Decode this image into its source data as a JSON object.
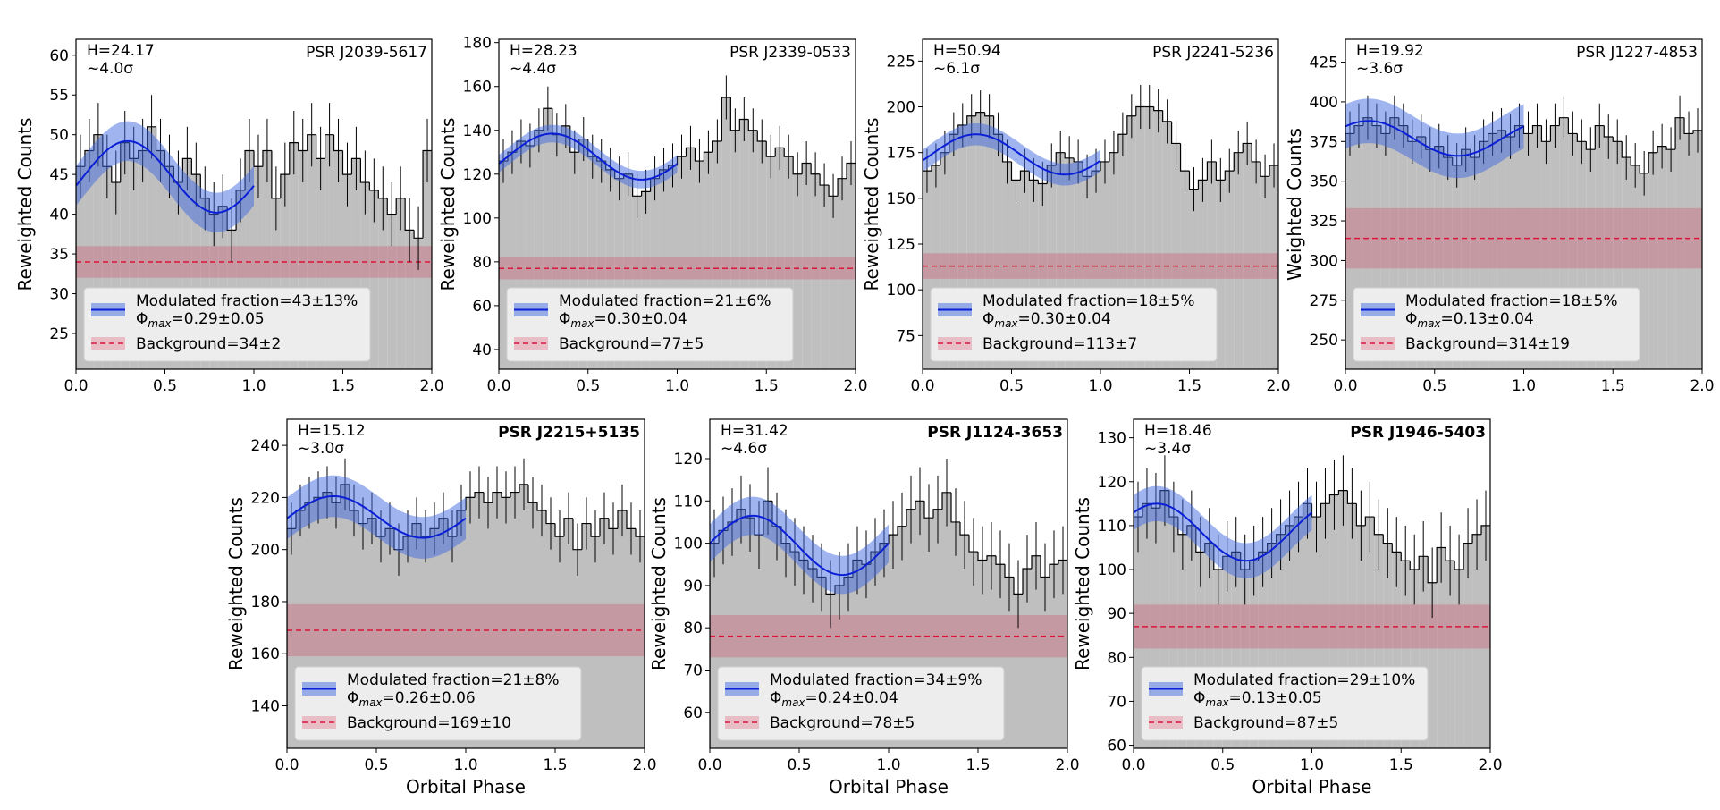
{
  "chart_data": [
    {
      "type": "histogram",
      "title": "PSR J2039-5617",
      "title_bold": false,
      "h_stat": "H=24.17",
      "significance": "~4.0σ",
      "ylabel": "Reweighted Counts",
      "bins": [
        0,
        0.05,
        0.1,
        0.15,
        0.2,
        0.25,
        0.3,
        0.35,
        0.4,
        0.45,
        0.5,
        0.55,
        0.6,
        0.65,
        0.7,
        0.75,
        0.8,
        0.85,
        0.9,
        0.95,
        1,
        1.05,
        1.1,
        1.15,
        1.2,
        1.25,
        1.3,
        1.35,
        1.4,
        1.45,
        1.5,
        1.55,
        1.6,
        1.65,
        1.7,
        1.75,
        1.8,
        1.85,
        1.9,
        1.95,
        2
      ],
      "values": [
        46,
        48,
        50,
        46,
        44,
        49,
        47,
        48,
        51,
        48,
        46,
        44,
        47,
        45,
        42,
        40,
        41,
        38,
        43,
        48,
        46,
        48,
        42,
        45,
        49,
        48,
        50,
        47,
        50,
        48,
        45,
        47,
        44,
        43,
        42,
        40,
        42,
        38,
        37,
        48
      ],
      "error": 4,
      "fit": {
        "mean": 44.7,
        "amplitude": 4.5,
        "phi_max": 0.29,
        "band": 2.5
      },
      "background": 34,
      "background_err": 2,
      "fraction_label": "Modulated fraction=43±13%",
      "phase_label": {
        "symbol": "Φ",
        "subscript": "max",
        "text": "=0.29±0.05"
      },
      "background_label": "Background=34±2",
      "xlim": [
        0,
        2
      ],
      "xticks": [
        {
          "value": 0,
          "label": "0.0"
        },
        0.5,
        {
          "value": 1,
          "label": "1.0"
        },
        1.5,
        {
          "value": 2,
          "label": "2.0"
        }
      ],
      "ylim": [
        20.5,
        62
      ],
      "yticks": [
        25,
        30,
        35,
        40,
        45,
        50,
        55,
        60
      ],
      "colors": {
        "hist": "#bfbfbf",
        "fit": "#0a1fd6",
        "band": "#4169e1",
        "bg": "#dc143c"
      }
    },
    {
      "type": "histogram",
      "title": "PSR J2339-0533",
      "title_bold": false,
      "h_stat": "H=28.23",
      "significance": "~4.4σ",
      "ylabel": "Reweighted Counts",
      "bins": [
        0,
        0.05,
        0.1,
        0.15,
        0.2,
        0.25,
        0.3,
        0.35,
        0.4,
        0.45,
        0.5,
        0.55,
        0.6,
        0.65,
        0.7,
        0.75,
        0.8,
        0.85,
        0.9,
        0.95,
        1,
        1.05,
        1.1,
        1.15,
        1.2,
        1.25,
        1.3,
        1.35,
        1.4,
        1.45,
        1.5,
        1.55,
        1.6,
        1.65,
        1.7,
        1.75,
        1.8,
        1.85,
        1.9,
        1.95,
        2
      ],
      "values": [
        126,
        130,
        135,
        133,
        140,
        150,
        138,
        142,
        130,
        136,
        128,
        126,
        122,
        118,
        120,
        110,
        112,
        118,
        122,
        124,
        128,
        132,
        126,
        130,
        135,
        155,
        140,
        145,
        140,
        135,
        128,
        132,
        128,
        120,
        125,
        120,
        115,
        110,
        118,
        125
      ],
      "error": 10,
      "fit": {
        "mean": 128,
        "amplitude": 10.5,
        "phi_max": 0.3,
        "band": 4
      },
      "background": 77,
      "background_err": 5,
      "fraction_label": "Modulated fraction=21±6%",
      "phase_label": {
        "symbol": "Φ",
        "subscript": "max",
        "text": "=0.30±0.04"
      },
      "background_label": "Background=77±5",
      "xlim": [
        0,
        2
      ],
      "xticks": [
        {
          "value": 0,
          "label": "0.0"
        },
        0.5,
        {
          "value": 1,
          "label": "1.0"
        },
        1.5,
        {
          "value": 2,
          "label": "2.0"
        }
      ],
      "ylim": [
        31,
        181.5
      ],
      "yticks": [
        40,
        60,
        80,
        100,
        120,
        140,
        160,
        180
      ],
      "colors": {
        "hist": "#bfbfbf",
        "fit": "#0a1fd6",
        "band": "#4169e1",
        "bg": "#dc143c"
      }
    },
    {
      "type": "histogram",
      "title": "PSR J2241-5236",
      "title_bold": false,
      "h_stat": "H=50.94",
      "significance": "~6.1σ",
      "ylabel": "Reweighted Counts",
      "bins": [
        0,
        0.05,
        0.1,
        0.15,
        0.2,
        0.25,
        0.3,
        0.35,
        0.4,
        0.45,
        0.5,
        0.55,
        0.6,
        0.65,
        0.7,
        0.75,
        0.8,
        0.85,
        0.9,
        0.95,
        1,
        1.05,
        1.1,
        1.15,
        1.2,
        1.25,
        1.3,
        1.35,
        1.4,
        1.45,
        1.5,
        1.55,
        1.6,
        1.65,
        1.7,
        1.75,
        1.8,
        1.85,
        1.9,
        1.95,
        2
      ],
      "values": [
        165,
        168,
        175,
        185,
        190,
        195,
        197,
        195,
        185,
        170,
        160,
        165,
        160,
        158,
        168,
        175,
        172,
        170,
        162,
        165,
        170,
        175,
        185,
        195,
        200,
        200,
        198,
        192,
        180,
        165,
        155,
        160,
        170,
        160,
        165,
        175,
        180,
        170,
        162,
        168
      ],
      "error": 12,
      "fit": {
        "mean": 174,
        "amplitude": 11,
        "phi_max": 0.3,
        "band": 6
      },
      "background": 113,
      "background_err": 7,
      "fraction_label": "Modulated fraction=18±5%",
      "phase_label": {
        "symbol": "Φ",
        "subscript": "max",
        "text": "=0.30±0.04"
      },
      "background_label": "Background=113±7",
      "xlim": [
        0,
        2
      ],
      "xticks": [
        {
          "value": 0,
          "label": "0.0"
        },
        0.5,
        {
          "value": 1,
          "label": "1.0"
        },
        1.5,
        {
          "value": 2,
          "label": "2.0"
        }
      ],
      "ylim": [
        56.6,
        236.9
      ],
      "yticks": [
        75,
        100,
        125,
        150,
        175,
        200,
        225
      ],
      "colors": {
        "hist": "#bfbfbf",
        "fit": "#0a1fd6",
        "band": "#4169e1",
        "bg": "#dc143c"
      }
    },
    {
      "type": "histogram",
      "title": "PSR J1227-4853",
      "title_bold": false,
      "h_stat": "H=19.92",
      "significance": "~3.6σ",
      "ylabel": "Weighted Counts",
      "bins": [
        0,
        0.05,
        0.1,
        0.15,
        0.2,
        0.25,
        0.3,
        0.35,
        0.4,
        0.45,
        0.5,
        0.55,
        0.6,
        0.65,
        0.7,
        0.75,
        0.8,
        0.85,
        0.9,
        0.95,
        1,
        1.05,
        1.1,
        1.15,
        1.2,
        1.25,
        1.3,
        1.35,
        1.4,
        1.45,
        1.5,
        1.55,
        1.6,
        1.65,
        1.7,
        1.75,
        1.8,
        1.85,
        1.9,
        1.95,
        2
      ],
      "values": [
        380,
        385,
        390,
        385,
        380,
        390,
        385,
        375,
        378,
        370,
        372,
        365,
        360,
        370,
        365,
        375,
        380,
        382,
        378,
        385,
        380,
        385,
        375,
        385,
        390,
        380,
        375,
        370,
        385,
        378,
        375,
        365,
        360,
        355,
        368,
        372,
        370,
        390,
        380,
        382
      ],
      "error": 14,
      "fit": {
        "mean": 377,
        "amplitude": 11,
        "phi_max": 0.13,
        "band": 14
      },
      "background": 314,
      "background_err": 19,
      "fraction_label": "Modulated fraction=18±5%",
      "phase_label": {
        "symbol": "Φ",
        "subscript": "max",
        "text": "=0.13±0.04"
      },
      "background_label": "Background=314±19",
      "xlim": [
        0,
        2
      ],
      "xticks": [
        {
          "value": 0,
          "label": "0.0"
        },
        0.5,
        {
          "value": 1,
          "label": "1.0"
        },
        1.5,
        {
          "value": 2,
          "label": "2.0"
        }
      ],
      "ylim": [
        231.5,
        439.4
      ],
      "yticks": [
        250,
        275,
        300,
        325,
        350,
        375,
        400,
        425
      ],
      "colors": {
        "hist": "#bfbfbf",
        "fit": "#0a1fd6",
        "band": "#4169e1",
        "bg": "#dc143c"
      }
    },
    {
      "type": "histogram",
      "title": "PSR J2215+5135",
      "title_bold": true,
      "h_stat": "H=15.12",
      "significance": "~3.0σ",
      "ylabel": "Reweighted Counts",
      "xlabel": "Orbital Phase",
      "bins": [
        0,
        0.05,
        0.1,
        0.15,
        0.2,
        0.25,
        0.3,
        0.35,
        0.4,
        0.45,
        0.5,
        0.55,
        0.6,
        0.65,
        0.7,
        0.75,
        0.8,
        0.85,
        0.9,
        0.95,
        1,
        1.05,
        1.1,
        1.15,
        1.2,
        1.25,
        1.3,
        1.35,
        1.4,
        1.45,
        1.5,
        1.55,
        1.6,
        1.65,
        1.7,
        1.75,
        1.8,
        1.85,
        1.9,
        1.95,
        2
      ],
      "values": [
        208,
        215,
        218,
        220,
        222,
        218,
        225,
        215,
        210,
        212,
        205,
        208,
        200,
        205,
        210,
        205,
        208,
        212,
        205,
        215,
        220,
        222,
        218,
        222,
        220,
        222,
        225,
        218,
        215,
        210,
        205,
        212,
        200,
        210,
        205,
        212,
        208,
        215,
        208,
        205
      ],
      "error": 10,
      "fit": {
        "mean": 212.5,
        "amplitude": 8,
        "phi_max": 0.26,
        "band": 8
      },
      "background": 169,
      "background_err": 10,
      "fraction_label": "Modulated fraction=21±8%",
      "phase_label": {
        "symbol": "Φ",
        "subscript": "max",
        "text": "=0.26±0.06"
      },
      "background_label": "Background=169±10",
      "xlim": [
        0,
        2
      ],
      "xticks": [
        {
          "value": 0,
          "label": "0.0"
        },
        0.5,
        {
          "value": 1,
          "label": "1.0"
        },
        1.5,
        {
          "value": 2,
          "label": "2.0"
        }
      ],
      "ylim": [
        123.7,
        250
      ],
      "yticks": [
        140,
        160,
        180,
        200,
        220,
        240
      ],
      "colors": {
        "hist": "#bfbfbf",
        "fit": "#0a1fd6",
        "band": "#4169e1",
        "bg": "#dc143c"
      }
    },
    {
      "type": "histogram",
      "title": "PSR J1124-3653",
      "title_bold": true,
      "h_stat": "H=31.42",
      "significance": "~4.6σ",
      "ylabel": "Reweighted Counts",
      "xlabel": "Orbital Phase",
      "bins": [
        0,
        0.05,
        0.1,
        0.15,
        0.2,
        0.25,
        0.3,
        0.35,
        0.4,
        0.45,
        0.5,
        0.55,
        0.6,
        0.65,
        0.7,
        0.75,
        0.8,
        0.85,
        0.9,
        0.95,
        1,
        1.05,
        1.1,
        1.15,
        1.2,
        1.25,
        1.3,
        1.35,
        1.4,
        1.45,
        1.5,
        1.55,
        1.6,
        1.65,
        1.7,
        1.75,
        1.8,
        1.85,
        1.9,
        1.95,
        2
      ],
      "values": [
        100,
        103,
        105,
        108,
        106,
        102,
        110,
        104,
        100,
        98,
        96,
        94,
        92,
        88,
        90,
        92,
        96,
        95,
        98,
        100,
        102,
        104,
        108,
        110,
        106,
        108,
        112,
        105,
        102,
        98,
        96,
        97,
        95,
        92,
        88,
        94,
        97,
        92,
        95,
        96
      ],
      "error": 8,
      "fit": {
        "mean": 99.5,
        "amplitude": 7,
        "phi_max": 0.24,
        "band": 4.5
      },
      "background": 78,
      "background_err": 5,
      "fraction_label": "Modulated fraction=34±9%",
      "phase_label": {
        "symbol": "Φ",
        "subscript": "max",
        "text": "=0.24±0.04"
      },
      "background_label": "Background=78±5",
      "xlim": [
        0,
        2
      ],
      "xticks": [
        {
          "value": 0,
          "label": "0.0"
        },
        0.5,
        {
          "value": 1,
          "label": "1.0"
        },
        1.5,
        {
          "value": 2,
          "label": "2.0"
        }
      ],
      "ylim": [
        51.5,
        129.3
      ],
      "yticks": [
        60,
        70,
        80,
        90,
        100,
        110,
        120
      ],
      "colors": {
        "hist": "#bfbfbf",
        "fit": "#0a1fd6",
        "band": "#4169e1",
        "bg": "#dc143c"
      }
    },
    {
      "type": "histogram",
      "title": "PSR J1946-5403",
      "title_bold": true,
      "h_stat": "H=18.46",
      "significance": "~3.4σ",
      "ylabel": "Reweighted Counts",
      "xlabel": "Orbital Phase",
      "bins": [
        0,
        0.05,
        0.1,
        0.15,
        0.2,
        0.25,
        0.3,
        0.35,
        0.4,
        0.45,
        0.5,
        0.55,
        0.6,
        0.65,
        0.7,
        0.75,
        0.8,
        0.85,
        0.9,
        0.95,
        1,
        1.05,
        1.1,
        1.15,
        1.2,
        1.25,
        1.3,
        1.35,
        1.4,
        1.45,
        1.5,
        1.55,
        1.6,
        1.65,
        1.7,
        1.75,
        1.8,
        1.85,
        1.9,
        1.95,
        2
      ],
      "values": [
        112,
        115,
        114,
        118,
        112,
        108,
        110,
        104,
        106,
        100,
        103,
        104,
        100,
        102,
        104,
        106,
        108,
        110,
        112,
        115,
        112,
        115,
        117,
        118,
        115,
        110,
        112,
        108,
        106,
        104,
        102,
        100,
        103,
        97,
        105,
        102,
        100,
        106,
        108,
        110
      ],
      "error": 8,
      "fit": {
        "mean": 108.5,
        "amplitude": 6.5,
        "phi_max": 0.13,
        "band": 4
      },
      "background": 87,
      "background_err": 5,
      "fraction_label": "Modulated fraction=29±10%",
      "phase_label": {
        "symbol": "Φ",
        "subscript": "max",
        "text": "=0.13±0.05"
      },
      "background_label": "Background=87±5",
      "xlim": [
        0,
        2
      ],
      "xticks": [
        {
          "value": 0,
          "label": "0.0"
        },
        0.5,
        {
          "value": 1,
          "label": "1.0"
        },
        1.5,
        {
          "value": 2,
          "label": "2.0"
        }
      ],
      "ylim": [
        59.3,
        134.2
      ],
      "yticks": [
        60,
        70,
        80,
        90,
        100,
        110,
        120,
        130
      ],
      "colors": {
        "hist": "#bfbfbf",
        "fit": "#0a1fd6",
        "band": "#4169e1",
        "bg": "#dc143c"
      }
    }
  ]
}
